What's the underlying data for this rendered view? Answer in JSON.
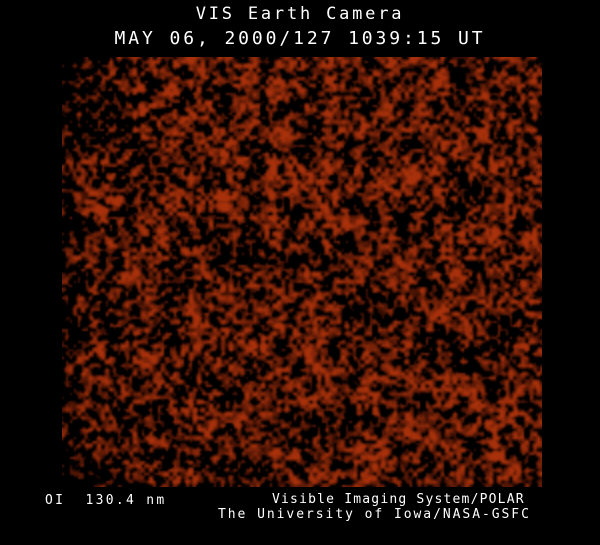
{
  "header": {
    "title": "VIS Earth Camera",
    "timestamp": "MAY 06, 2000/127 1039:15 UT"
  },
  "footer": {
    "wavelength_label": "OI  130.4 nm",
    "credit_line1": "Visible Imaging System/POLAR",
    "credit_line2": "The University of Iowa/NASA-GSFC"
  },
  "colors": {
    "background": "#000000",
    "text": "#ffffff",
    "speckle_dark": "#3c0a02",
    "speckle_mid": "#6b1d07",
    "speckle_bright": "#a83114"
  },
  "image": {
    "description": "dark-red speckled airglow camera noise on black",
    "noise": {
      "seed": 1337,
      "base_width": 240,
      "base_height": 215,
      "display_width": 480,
      "display_height": 430,
      "cells": [
        2,
        4,
        9
      ],
      "weights": [
        0.5,
        0.3,
        0.2
      ],
      "threshold": 0.45,
      "span": 0.3,
      "jitter": 0.06,
      "color_base": [
        40,
        9,
        2
      ],
      "color_gain": [
        128,
        40,
        9
      ]
    }
  }
}
